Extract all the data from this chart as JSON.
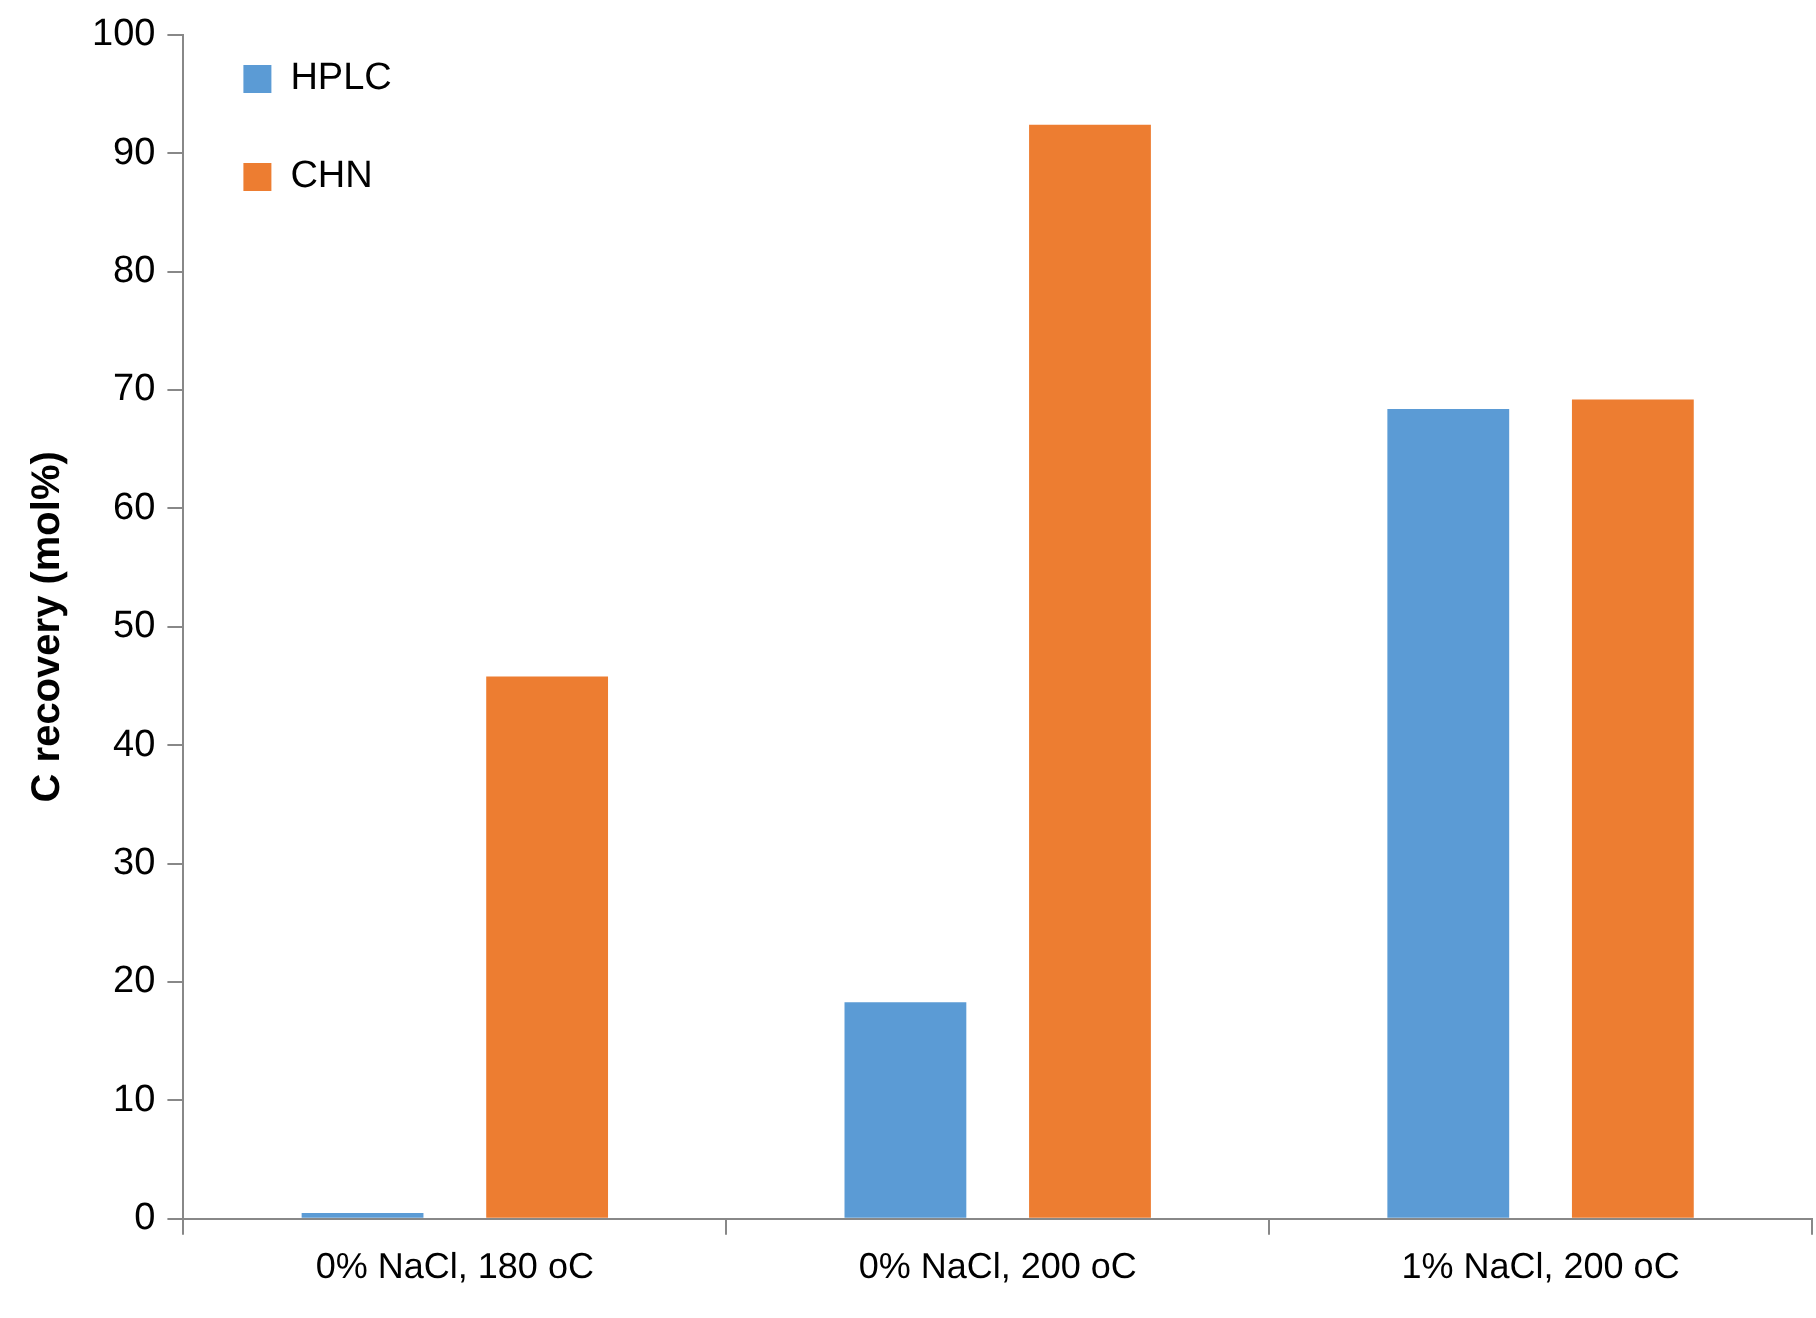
{
  "chart_data": {
    "type": "bar",
    "ylabel": "C recovery (mol%)",
    "categories": [
      "0% NaCl, 180 oC",
      "0% NaCl, 200 oC",
      "1% NaCl, 200 oC"
    ],
    "series": [
      {
        "name": "HPLC",
        "color": "#5b9bd5",
        "values": [
          0.5,
          18.3,
          68.4
        ]
      },
      {
        "name": "CHN",
        "color": "#ed7d31",
        "values": [
          45.8,
          92.4,
          69.2
        ]
      }
    ],
    "ylim": [
      0,
      100
    ],
    "yticks": [
      0,
      10,
      20,
      30,
      40,
      50,
      60,
      70,
      80,
      90,
      100
    ],
    "grid": false,
    "legend": "top left"
  }
}
